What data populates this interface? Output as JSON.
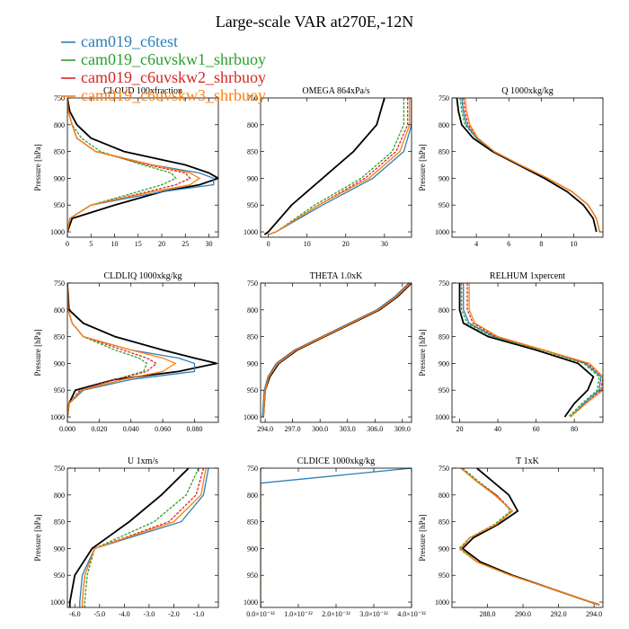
{
  "figure": {
    "title": "Large-scale VAR at270E,-12N"
  },
  "legend": [
    {
      "name": "cam019_c6test",
      "color": "#2e7fb8"
    },
    {
      "name": "cam019_c6uvskw1_shrbuoy",
      "color": "#2ca02c"
    },
    {
      "name": "cam019_c6uvskw2_shrbuoy",
      "color": "#d62728"
    },
    {
      "name": "cam019_c6uvskw3_shrbuoy",
      "color": "#ff7f0e"
    }
  ],
  "black_line_color": "#000000",
  "chart_data": [
    {
      "type": "line",
      "title": "CLOUD 100xfraction",
      "ylabel": "Pressure [hPa]",
      "xlim": [
        0,
        32
      ],
      "ylim": [
        750,
        1010
      ],
      "y_inverted": true,
      "xticks": [
        0,
        5,
        10,
        15,
        20,
        25,
        30
      ],
      "xtick_labels": [
        "0",
        "5",
        "10",
        "15",
        "20",
        "25",
        "30"
      ],
      "yticks": [
        750,
        800,
        850,
        900,
        950,
        1000
      ],
      "ytick_labels": [
        "750",
        "800",
        "850",
        "900",
        "950",
        "1000"
      ],
      "y": [
        750,
        775,
        800,
        825,
        850,
        875,
        890,
        900,
        912,
        925,
        950,
        975,
        1000
      ],
      "series": [
        {
          "color": "#000000",
          "x": [
            0,
            0.5,
            2,
            5,
            12,
            25,
            30,
            32,
            28,
            20,
            10,
            1,
            0
          ]
        },
        {
          "color": "#2e7fb8",
          "x": [
            0,
            0.2,
            1,
            2,
            6,
            18,
            28,
            31,
            31,
            20,
            5,
            0.5,
            0
          ]
        },
        {
          "color": "#2ca02c",
          "x": [
            0,
            0.2,
            1,
            3,
            7,
            16,
            22,
            23,
            20,
            15,
            5,
            0.5,
            0
          ]
        },
        {
          "color": "#d62728",
          "x": [
            0,
            0.2,
            1,
            2,
            6,
            17,
            25,
            26,
            23,
            17,
            5,
            0.5,
            0
          ]
        },
        {
          "color": "#ff7f0e",
          "x": [
            0,
            0.2,
            1,
            2,
            6,
            18,
            26,
            28,
            26,
            18,
            5,
            0.5,
            0
          ]
        }
      ]
    },
    {
      "type": "line",
      "title": "OMEGA 864xPa/s",
      "ylabel": "",
      "xlim": [
        -2,
        37
      ],
      "ylim": [
        750,
        1010
      ],
      "y_inverted": true,
      "xticks": [
        0,
        10,
        20,
        30
      ],
      "xtick_labels": [
        "0",
        "10",
        "20",
        "30"
      ],
      "yticks": [
        750,
        800,
        850,
        900,
        950,
        1000
      ],
      "ytick_labels": [
        "750",
        "800",
        "850",
        "900",
        "950",
        "1000"
      ],
      "y": [
        750,
        800,
        850,
        900,
        950,
        1000,
        1005
      ],
      "series": [
        {
          "color": "#000000",
          "x": [
            30,
            28,
            22,
            14,
            6,
            0,
            -1
          ]
        },
        {
          "color": "#2e7fb8",
          "x": [
            37,
            37,
            35,
            27,
            14,
            2,
            0
          ]
        },
        {
          "color": "#2ca02c",
          "x": [
            35,
            35,
            32,
            24,
            12,
            2,
            0
          ]
        },
        {
          "color": "#d62728",
          "x": [
            36,
            36,
            33,
            25,
            13,
            2,
            0
          ]
        },
        {
          "color": "#ff7f0e",
          "x": [
            36.5,
            36.5,
            34,
            26,
            13,
            2,
            0
          ]
        }
      ]
    },
    {
      "type": "line",
      "title": "Q 1000xkg/kg",
      "ylabel": "Pressure [hPa]",
      "xlim": [
        2.5,
        11.8
      ],
      "ylim": [
        750,
        1010
      ],
      "y_inverted": true,
      "xticks": [
        4,
        6,
        8,
        10
      ],
      "xtick_labels": [
        "4",
        "6",
        "8",
        "10"
      ],
      "yticks": [
        750,
        800,
        850,
        900,
        950,
        1000
      ],
      "ytick_labels": [
        "750",
        "800",
        "850",
        "900",
        "950",
        "1000"
      ],
      "y": [
        750,
        775,
        800,
        825,
        850,
        875,
        900,
        925,
        950,
        975,
        1000
      ],
      "series": [
        {
          "color": "#000000",
          "x": [
            2.8,
            2.9,
            3.1,
            3.8,
            5.0,
            6.6,
            8.2,
            9.6,
            10.6,
            11.2,
            11.4
          ]
        },
        {
          "color": "#2e7fb8",
          "x": [
            3.1,
            3.2,
            3.4,
            4.0,
            5.1,
            6.7,
            8.4,
            9.9,
            10.9,
            11.4,
            11.6
          ]
        },
        {
          "color": "#2ca02c",
          "x": [
            3.0,
            3.1,
            3.3,
            4.0,
            5.1,
            6.7,
            8.4,
            9.9,
            10.9,
            11.4,
            11.6
          ]
        },
        {
          "color": "#d62728",
          "x": [
            3.2,
            3.3,
            3.5,
            4.1,
            5.1,
            6.7,
            8.4,
            9.9,
            10.9,
            11.4,
            11.6
          ]
        },
        {
          "color": "#ff7f0e",
          "x": [
            3.3,
            3.4,
            3.6,
            4.1,
            5.1,
            6.7,
            8.4,
            9.9,
            10.9,
            11.4,
            11.6
          ]
        }
      ]
    },
    {
      "type": "line",
      "title": "CLDLIQ 1000xkg/kg",
      "ylabel": "Pressure [hPa]",
      "xlim": [
        0,
        0.095
      ],
      "ylim": [
        750,
        1010
      ],
      "y_inverted": true,
      "xticks": [
        0,
        0.02,
        0.04,
        0.06,
        0.08
      ],
      "xtick_labels": [
        "0.000",
        "0.020",
        "0.040",
        "0.060",
        "0.080"
      ],
      "yticks": [
        750,
        800,
        850,
        900,
        950,
        1000
      ],
      "ytick_labels": [
        "750",
        "800",
        "850",
        "900",
        "950",
        "1000"
      ],
      "y": [
        750,
        800,
        825,
        850,
        875,
        890,
        900,
        915,
        930,
        950,
        975,
        1000
      ],
      "series": [
        {
          "color": "#000000",
          "x": [
            0,
            0.001,
            0.01,
            0.03,
            0.06,
            0.08,
            0.094,
            0.07,
            0.03,
            0.005,
            0.001,
            0
          ]
        },
        {
          "color": "#2e7fb8",
          "x": [
            0,
            0.0005,
            0.003,
            0.01,
            0.04,
            0.07,
            0.08,
            0.08,
            0.04,
            0.01,
            0.001,
            0
          ]
        },
        {
          "color": "#2ca02c",
          "x": [
            0,
            0.0005,
            0.003,
            0.01,
            0.03,
            0.045,
            0.05,
            0.048,
            0.03,
            0.008,
            0.001,
            0
          ]
        },
        {
          "color": "#d62728",
          "x": [
            0,
            0.0005,
            0.003,
            0.01,
            0.035,
            0.05,
            0.056,
            0.05,
            0.03,
            0.008,
            0.001,
            0
          ]
        },
        {
          "color": "#ff7f0e",
          "x": [
            0,
            0.0005,
            0.003,
            0.01,
            0.04,
            0.06,
            0.068,
            0.06,
            0.035,
            0.009,
            0.001,
            0
          ]
        }
      ]
    },
    {
      "type": "line",
      "title": "THETA 1.0xK",
      "ylabel": "",
      "xlim": [
        293.5,
        310
      ],
      "ylim": [
        750,
        1010
      ],
      "y_inverted": true,
      "xticks": [
        294,
        297,
        300,
        303,
        306,
        309
      ],
      "xtick_labels": [
        "294.0",
        "297.0",
        "300.0",
        "303.0",
        "306.0",
        "309.0"
      ],
      "yticks": [
        750,
        800,
        850,
        900,
        950,
        1000
      ],
      "ytick_labels": [
        "750",
        "800",
        "850",
        "900",
        "950",
        "1000"
      ],
      "y": [
        750,
        775,
        800,
        825,
        850,
        875,
        900,
        925,
        950,
        975,
        1000
      ],
      "series": [
        {
          "color": "#000000",
          "x": [
            310,
            308.5,
            306.5,
            303.5,
            300.5,
            297.5,
            295.5,
            294.5,
            294.0,
            293.9,
            293.8
          ]
        },
        {
          "color": "#2e7fb8",
          "x": [
            309.7,
            308.2,
            306.2,
            303.2,
            300.2,
            297.2,
            295.2,
            294.3,
            293.9,
            293.8,
            293.7
          ]
        },
        {
          "color": "#2ca02c",
          "x": [
            309.8,
            308.3,
            306.3,
            303.3,
            300.3,
            297.3,
            295.3,
            294.4,
            294.0,
            293.9,
            293.8
          ]
        },
        {
          "color": "#d62728",
          "x": [
            309.8,
            308.3,
            306.3,
            303.3,
            300.3,
            297.3,
            295.3,
            294.4,
            294.0,
            293.9,
            293.8
          ]
        },
        {
          "color": "#ff7f0e",
          "x": [
            309.9,
            308.4,
            306.4,
            303.4,
            300.4,
            297.4,
            295.4,
            294.4,
            294.0,
            293.9,
            293.8
          ]
        }
      ]
    },
    {
      "type": "line",
      "title": "RELHUM 1xpercent",
      "ylabel": "Pressure [hPa]",
      "xlim": [
        16,
        95
      ],
      "ylim": [
        750,
        1010
      ],
      "y_inverted": true,
      "xticks": [
        20,
        40,
        60,
        80
      ],
      "xtick_labels": [
        "20",
        "40",
        "60",
        "80"
      ],
      "yticks": [
        750,
        800,
        850,
        900,
        950,
        1000
      ],
      "ytick_labels": [
        "750",
        "800",
        "850",
        "900",
        "950",
        "1000"
      ],
      "y": [
        750,
        800,
        825,
        850,
        875,
        900,
        925,
        950,
        975,
        1000
      ],
      "series": [
        {
          "color": "#000000",
          "x": [
            20,
            20,
            22,
            35,
            60,
            82,
            90,
            87,
            80,
            75
          ]
        },
        {
          "color": "#2e7fb8",
          "x": [
            22,
            22,
            25,
            38,
            64,
            86,
            94,
            93,
            85,
            78
          ]
        },
        {
          "color": "#2ca02c",
          "x": [
            21,
            21,
            24,
            37,
            63,
            85,
            93,
            92,
            84,
            77
          ]
        },
        {
          "color": "#d62728",
          "x": [
            24,
            24,
            27,
            39,
            64,
            87,
            95,
            94,
            86,
            78
          ]
        },
        {
          "color": "#ff7f0e",
          "x": [
            25,
            25,
            28,
            40,
            64,
            88,
            95,
            95,
            86,
            78
          ]
        }
      ]
    },
    {
      "type": "line",
      "title": "U 1xm/s",
      "ylabel": "Pressure [hPa]",
      "xlim": [
        -6.3,
        -0.2
      ],
      "ylim": [
        750,
        1010
      ],
      "y_inverted": true,
      "xticks": [
        -6,
        -5,
        -4,
        -3,
        -2,
        -1
      ],
      "xtick_labels": [
        "-6.0",
        "-5.0",
        "-4.0",
        "-3.0",
        "-2.0",
        "-1.0"
      ],
      "yticks": [
        750,
        800,
        850,
        900,
        950,
        1000
      ],
      "ytick_labels": [
        "750",
        "800",
        "850",
        "900",
        "950",
        "1000"
      ],
      "y": [
        750,
        800,
        850,
        900,
        950,
        1000,
        1010
      ],
      "series": [
        {
          "color": "#000000",
          "x": [
            -1.4,
            -2.5,
            -3.8,
            -5.3,
            -6.0,
            -6.2,
            -6.2
          ]
        },
        {
          "color": "#2e7fb8",
          "x": [
            -0.6,
            -0.8,
            -1.7,
            -5.2,
            -5.7,
            -5.8,
            -5.8
          ]
        },
        {
          "color": "#2ca02c",
          "x": [
            -1.0,
            -1.5,
            -2.8,
            -5.2,
            -5.5,
            -5.6,
            -5.6
          ]
        },
        {
          "color": "#d62728",
          "x": [
            -0.8,
            -1.1,
            -2.2,
            -5.2,
            -5.6,
            -5.7,
            -5.7
          ]
        },
        {
          "color": "#ff7f0e",
          "x": [
            -0.7,
            -0.9,
            -2.0,
            -5.2,
            -5.6,
            -5.7,
            -5.7
          ]
        }
      ]
    },
    {
      "type": "line",
      "title": "CLDICE 1000xkg/kg",
      "ylabel": "",
      "xlim": [
        0,
        4e-32
      ],
      "ylim": [
        750,
        1010
      ],
      "y_inverted": true,
      "xticks": [
        0,
        1e-32,
        2e-32,
        3e-32,
        4e-32
      ],
      "xtick_labels": [
        "0.0×10⁻³²",
        "1.0×10⁻³²",
        "2.0×10⁻³²",
        "3.0×10⁻³²",
        "4.0×10⁻³²"
      ],
      "yticks": [
        750,
        800,
        850,
        900,
        950,
        1000
      ],
      "ytick_labels": [
        "750",
        "800",
        "850",
        "900",
        "950",
        "1000"
      ],
      "y": [
        750,
        778,
        800,
        1010
      ],
      "series": [
        {
          "color": "#2e7fb8",
          "x": [
            4e-32,
            0,
            0,
            0
          ]
        },
        {
          "color": "#ff7f0e",
          "x": [
            0,
            0,
            0,
            0
          ]
        }
      ]
    },
    {
      "type": "line",
      "title": "T 1xK",
      "ylabel": "Pressure [hPa]",
      "xlim": [
        286,
        294.5
      ],
      "ylim": [
        750,
        1010
      ],
      "y_inverted": true,
      "xticks": [
        288,
        290,
        292,
        294
      ],
      "xtick_labels": [
        "288.0",
        "290.0",
        "292.0",
        "294.0"
      ],
      "yticks": [
        750,
        800,
        850,
        900,
        950,
        1000
      ],
      "ytick_labels": [
        "750",
        "800",
        "850",
        "900",
        "950",
        "1000"
      ],
      "y": [
        750,
        775,
        800,
        830,
        855,
        880,
        900,
        925,
        950,
        975,
        1000,
        1005
      ],
      "series": [
        {
          "color": "#000000",
          "x": [
            287.4,
            288.3,
            289.2,
            289.7,
            288.6,
            287.2,
            286.6,
            287.6,
            289.4,
            291.6,
            293.8,
            294.3
          ]
        },
        {
          "color": "#2e7fb8",
          "x": [
            286.5,
            287.4,
            288.4,
            289.4,
            288.5,
            287.0,
            286.5,
            287.4,
            289.3,
            291.6,
            293.8,
            294.3
          ]
        },
        {
          "color": "#2ca02c",
          "x": [
            286.6,
            287.5,
            288.5,
            289.3,
            288.4,
            287.0,
            286.4,
            287.4,
            289.3,
            291.6,
            293.8,
            294.3
          ]
        },
        {
          "color": "#d62728",
          "x": [
            286.5,
            287.4,
            288.5,
            289.4,
            288.5,
            287.0,
            286.5,
            287.4,
            289.3,
            291.6,
            293.8,
            294.3
          ]
        },
        {
          "color": "#ff7f0e",
          "x": [
            286.5,
            287.4,
            288.4,
            289.4,
            288.5,
            287.0,
            286.5,
            287.4,
            289.3,
            291.6,
            293.8,
            294.3
          ]
        }
      ]
    }
  ]
}
